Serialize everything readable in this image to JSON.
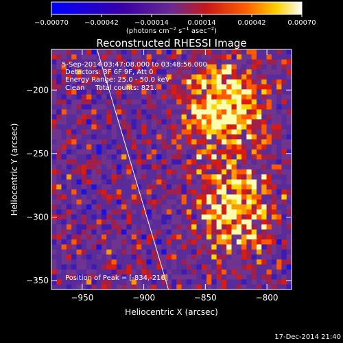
{
  "chart_data": {
    "type": "heatmap",
    "title": "Reconstructed RHESSI Image",
    "xlabel": "Heliocentric X (arcsec)",
    "ylabel": "Heliocentric Y (arcsec)",
    "xlim": [
      -975,
      -780
    ],
    "ylim": [
      -357,
      -168
    ],
    "x_ticks": [
      -950,
      -900,
      -850,
      -800
    ],
    "x_tick_labels": [
      "−950",
      "−900",
      "−850",
      "−800"
    ],
    "y_ticks": [
      -200,
      -250,
      -300,
      -350
    ],
    "y_tick_labels": [
      "−200",
      "−250",
      "−300",
      "−350"
    ],
    "colorbar": {
      "range": [
        -0.0007,
        0.0007
      ],
      "ticks": [
        -0.0007,
        -0.00042,
        -0.00014,
        0.00014,
        0.00042,
        0.0007
      ],
      "tick_labels": [
        "−0.00070",
        "−0.00042",
        "−0.00014",
        "0.00014",
        "0.00042",
        "0.00070"
      ],
      "units_prefix": "(photons cm",
      "units_exp1": "−2",
      "units_mid1": " s",
      "units_exp2": "−1",
      "units_mid2": " asec",
      "units_exp3": "−2",
      "units_suffix": ")"
    },
    "limb_line": [
      [
        -938,
        -168
      ],
      [
        -880,
        -357
      ]
    ],
    "sources": [
      {
        "x": -835,
        "y": -214,
        "peak": 1.0
      },
      {
        "x": -826,
        "y": -294,
        "peak": 0.85
      }
    ],
    "annotations": {
      "line1": "5-Sep-2014 03:47:08.000 to 03:48:56.000",
      "line2": "Detectors: 3F 6F 9F, Att 0",
      "line3": "Energy Range: 25.0 - 50.0 keV",
      "line4": "Clean     Total counts: 821.",
      "peak": "Position of Peak = [-834,-216]"
    },
    "grid": false
  },
  "footer": {
    "timestamp": "17-Dec-2014 21:40"
  },
  "colors": {
    "background": "#000000",
    "text": "#ffffff",
    "colormap": [
      "#0000ff",
      "#4a00a0",
      "#6a2aa8",
      "#d01818",
      "#ff8000",
      "#ffff80"
    ]
  }
}
